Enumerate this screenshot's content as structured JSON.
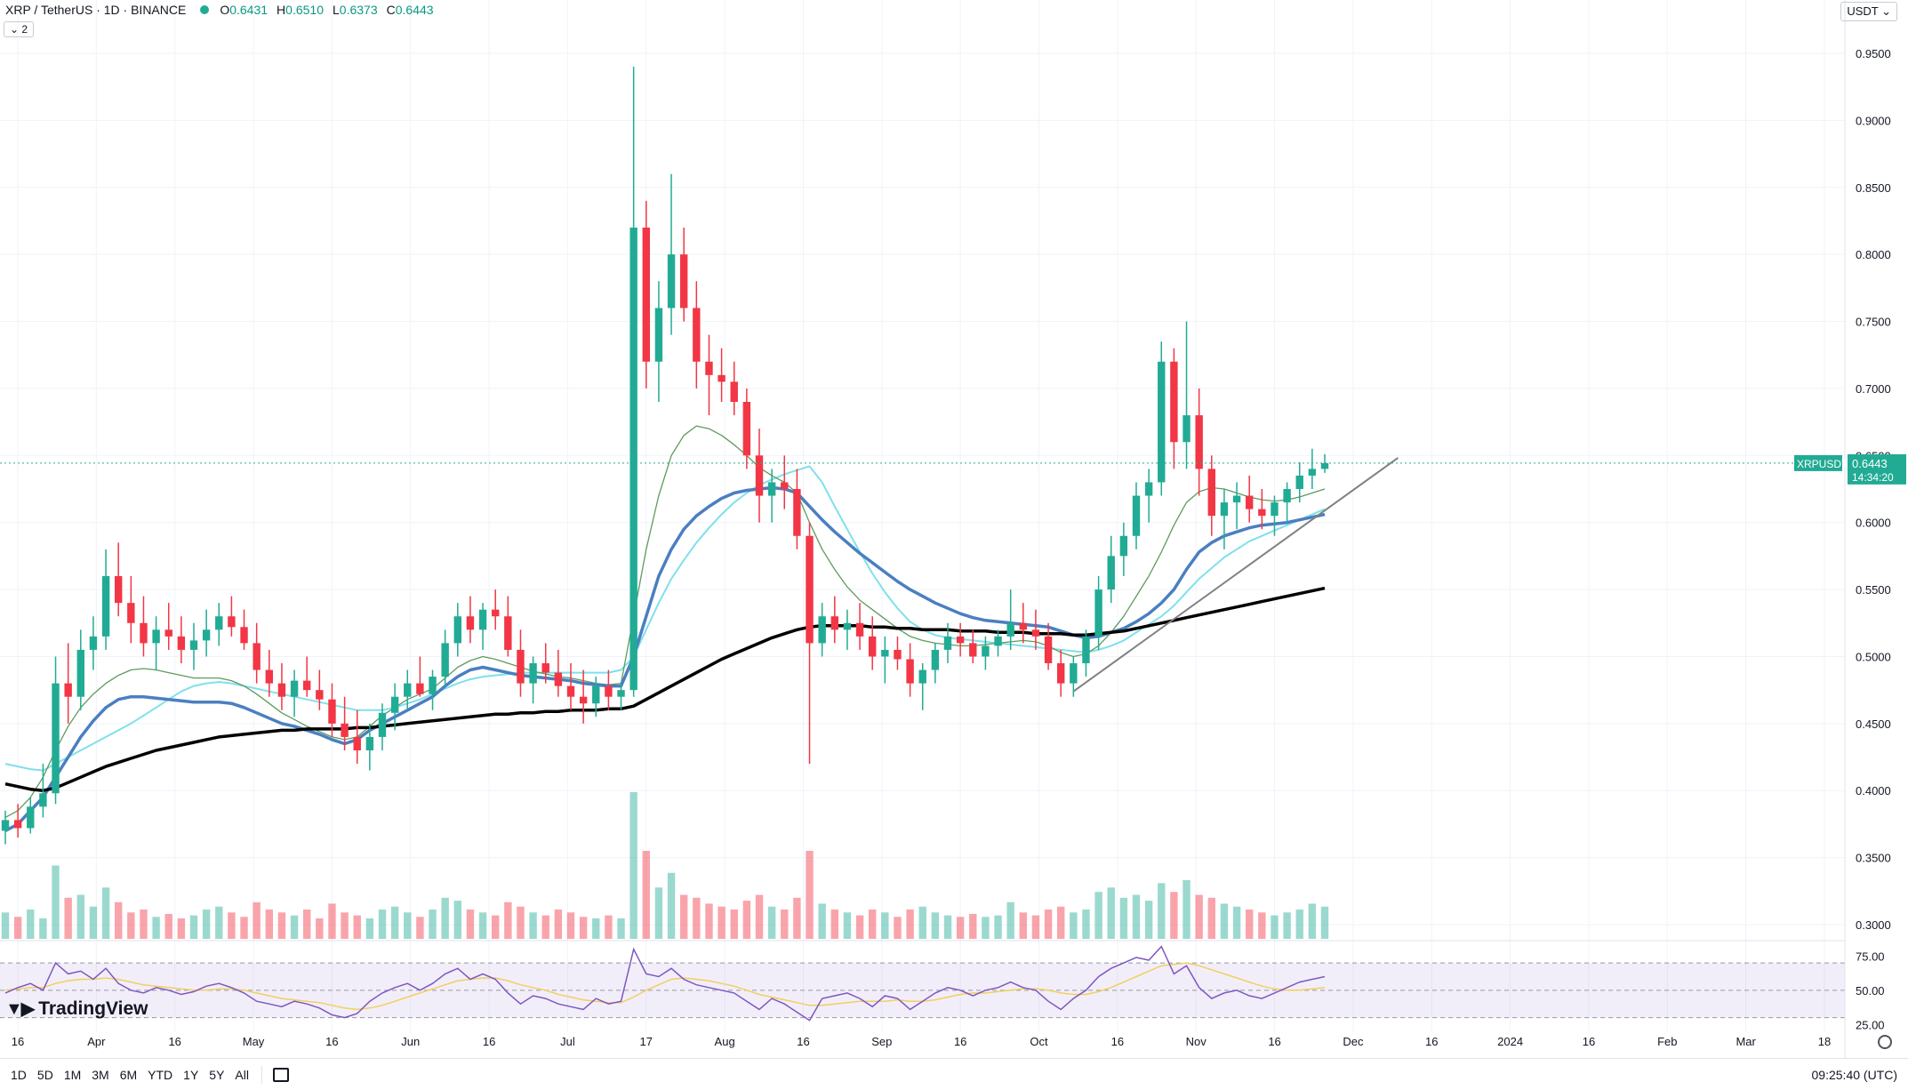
{
  "header": {
    "symbol_title": "XRP / TetherUS · 1D · BINANCE",
    "ohlc": [
      {
        "k": "O",
        "v": "0.6431"
      },
      {
        "k": "H",
        "v": "0.6510"
      },
      {
        "k": "L",
        "v": "0.6373"
      },
      {
        "k": "C",
        "v": "0.6443"
      }
    ],
    "indicator_count": "2",
    "currency": "USDT"
  },
  "price_label": {
    "symbol": "XRPUSDT",
    "price": "0.6443",
    "countdown": "14:34:20"
  },
  "timeframes": [
    "1D",
    "5D",
    "1M",
    "3M",
    "6M",
    "YTD",
    "1Y",
    "5Y",
    "All"
  ],
  "clock": "09:25:40 (UTC)",
  "logo_text": "TradingView",
  "colors": {
    "up": "#22ab94",
    "down": "#f23645",
    "sma_black": "#000000",
    "ema_blue": "#4a7fc1",
    "cyan": "#7fe0ec",
    "green_ma": "#5f9a5f",
    "rsi": "#7e57c2",
    "rsi_ma": "#f0d060",
    "trend": "#808080"
  },
  "chart_data": {
    "type": "candlestick",
    "y_axis": {
      "ticks": [
        "0.9500",
        "0.9000",
        "0.8500",
        "0.8000",
        "0.7500",
        "0.7000",
        "0.6500",
        "0.6000",
        "0.5500",
        "0.5000",
        "0.4500",
        "0.4000",
        "0.3500",
        "0.3000"
      ],
      "range": [
        0.29,
        0.96
      ]
    },
    "x_axis": {
      "ticks": [
        "16",
        "Apr",
        "16",
        "May",
        "16",
        "Jun",
        "16",
        "Jul",
        "17",
        "Aug",
        "16",
        "Sep",
        "16",
        "Oct",
        "16",
        "Nov",
        "16",
        "Dec",
        "16",
        "2024",
        "16",
        "Feb",
        "Mar",
        "18"
      ]
    },
    "last_price": 0.6443,
    "rsi_axis": {
      "ticks": [
        "75.00",
        "50.00",
        "25.00"
      ],
      "range": [
        20,
        85
      ],
      "band": [
        30,
        70
      ]
    },
    "ohlc": [
      [
        0.37,
        0.385,
        0.36,
        0.378
      ],
      [
        0.378,
        0.39,
        0.365,
        0.372
      ],
      [
        0.372,
        0.395,
        0.368,
        0.388
      ],
      [
        0.388,
        0.42,
        0.38,
        0.398
      ],
      [
        0.398,
        0.5,
        0.39,
        0.48
      ],
      [
        0.48,
        0.51,
        0.45,
        0.47
      ],
      [
        0.47,
        0.52,
        0.46,
        0.505
      ],
      [
        0.505,
        0.53,
        0.49,
        0.515
      ],
      [
        0.515,
        0.58,
        0.505,
        0.56
      ],
      [
        0.56,
        0.585,
        0.53,
        0.54
      ],
      [
        0.54,
        0.56,
        0.51,
        0.525
      ],
      [
        0.525,
        0.545,
        0.5,
        0.51
      ],
      [
        0.51,
        0.53,
        0.49,
        0.52
      ],
      [
        0.52,
        0.54,
        0.505,
        0.515
      ],
      [
        0.515,
        0.53,
        0.495,
        0.505
      ],
      [
        0.505,
        0.525,
        0.49,
        0.512
      ],
      [
        0.512,
        0.535,
        0.5,
        0.52
      ],
      [
        0.52,
        0.54,
        0.508,
        0.53
      ],
      [
        0.53,
        0.545,
        0.515,
        0.522
      ],
      [
        0.522,
        0.535,
        0.505,
        0.51
      ],
      [
        0.51,
        0.525,
        0.48,
        0.49
      ],
      [
        0.49,
        0.505,
        0.47,
        0.48
      ],
      [
        0.48,
        0.495,
        0.46,
        0.47
      ],
      [
        0.47,
        0.49,
        0.455,
        0.482
      ],
      [
        0.482,
        0.5,
        0.47,
        0.475
      ],
      [
        0.475,
        0.49,
        0.46,
        0.468
      ],
      [
        0.468,
        0.48,
        0.44,
        0.45
      ],
      [
        0.45,
        0.47,
        0.43,
        0.44
      ],
      [
        0.44,
        0.46,
        0.42,
        0.43
      ],
      [
        0.43,
        0.45,
        0.415,
        0.44
      ],
      [
        0.44,
        0.465,
        0.43,
        0.458
      ],
      [
        0.458,
        0.48,
        0.445,
        0.47
      ],
      [
        0.47,
        0.49,
        0.46,
        0.48
      ],
      [
        0.48,
        0.5,
        0.47,
        0.472
      ],
      [
        0.472,
        0.49,
        0.46,
        0.485
      ],
      [
        0.485,
        0.52,
        0.478,
        0.51
      ],
      [
        0.51,
        0.54,
        0.5,
        0.53
      ],
      [
        0.53,
        0.545,
        0.51,
        0.52
      ],
      [
        0.52,
        0.54,
        0.505,
        0.535
      ],
      [
        0.535,
        0.55,
        0.52,
        0.53
      ],
      [
        0.53,
        0.545,
        0.5,
        0.505
      ],
      [
        0.505,
        0.52,
        0.47,
        0.48
      ],
      [
        0.48,
        0.5,
        0.465,
        0.495
      ],
      [
        0.495,
        0.51,
        0.48,
        0.488
      ],
      [
        0.488,
        0.505,
        0.47,
        0.478
      ],
      [
        0.478,
        0.495,
        0.46,
        0.47
      ],
      [
        0.47,
        0.49,
        0.45,
        0.465
      ],
      [
        0.465,
        0.485,
        0.455,
        0.478
      ],
      [
        0.478,
        0.49,
        0.46,
        0.47
      ],
      [
        0.47,
        0.48,
        0.46,
        0.475
      ],
      [
        0.475,
        0.94,
        0.47,
        0.82
      ],
      [
        0.82,
        0.84,
        0.7,
        0.72
      ],
      [
        0.72,
        0.78,
        0.69,
        0.76
      ],
      [
        0.76,
        0.86,
        0.74,
        0.8
      ],
      [
        0.8,
        0.82,
        0.75,
        0.76
      ],
      [
        0.76,
        0.78,
        0.7,
        0.72
      ],
      [
        0.72,
        0.74,
        0.68,
        0.71
      ],
      [
        0.71,
        0.73,
        0.69,
        0.705
      ],
      [
        0.705,
        0.72,
        0.68,
        0.69
      ],
      [
        0.69,
        0.7,
        0.64,
        0.65
      ],
      [
        0.65,
        0.67,
        0.6,
        0.62
      ],
      [
        0.62,
        0.64,
        0.6,
        0.63
      ],
      [
        0.63,
        0.65,
        0.61,
        0.625
      ],
      [
        0.625,
        0.64,
        0.58,
        0.59
      ],
      [
        0.59,
        0.6,
        0.42,
        0.51
      ],
      [
        0.51,
        0.54,
        0.5,
        0.53
      ],
      [
        0.53,
        0.545,
        0.51,
        0.52
      ],
      [
        0.52,
        0.535,
        0.505,
        0.525
      ],
      [
        0.525,
        0.54,
        0.505,
        0.515
      ],
      [
        0.515,
        0.53,
        0.49,
        0.5
      ],
      [
        0.5,
        0.515,
        0.48,
        0.505
      ],
      [
        0.505,
        0.515,
        0.49,
        0.498
      ],
      [
        0.498,
        0.51,
        0.47,
        0.48
      ],
      [
        0.48,
        0.495,
        0.46,
        0.49
      ],
      [
        0.49,
        0.51,
        0.48,
        0.505
      ],
      [
        0.505,
        0.525,
        0.495,
        0.515
      ],
      [
        0.515,
        0.525,
        0.5,
        0.51
      ],
      [
        0.51,
        0.52,
        0.495,
        0.5
      ],
      [
        0.5,
        0.515,
        0.49,
        0.508
      ],
      [
        0.508,
        0.52,
        0.5,
        0.515
      ],
      [
        0.515,
        0.55,
        0.505,
        0.525
      ],
      [
        0.525,
        0.54,
        0.51,
        0.52
      ],
      [
        0.52,
        0.535,
        0.505,
        0.515
      ],
      [
        0.515,
        0.525,
        0.49,
        0.495
      ],
      [
        0.495,
        0.505,
        0.47,
        0.48
      ],
      [
        0.48,
        0.5,
        0.47,
        0.495
      ],
      [
        0.495,
        0.52,
        0.485,
        0.515
      ],
      [
        0.515,
        0.56,
        0.505,
        0.55
      ],
      [
        0.55,
        0.59,
        0.54,
        0.575
      ],
      [
        0.575,
        0.6,
        0.56,
        0.59
      ],
      [
        0.59,
        0.63,
        0.58,
        0.62
      ],
      [
        0.62,
        0.64,
        0.6,
        0.63
      ],
      [
        0.63,
        0.735,
        0.62,
        0.72
      ],
      [
        0.72,
        0.73,
        0.64,
        0.66
      ],
      [
        0.66,
        0.75,
        0.64,
        0.68
      ],
      [
        0.68,
        0.7,
        0.62,
        0.64
      ],
      [
        0.64,
        0.65,
        0.59,
        0.605
      ],
      [
        0.605,
        0.625,
        0.58,
        0.615
      ],
      [
        0.615,
        0.63,
        0.595,
        0.62
      ],
      [
        0.62,
        0.635,
        0.6,
        0.61
      ],
      [
        0.61,
        0.625,
        0.595,
        0.605
      ],
      [
        0.605,
        0.62,
        0.59,
        0.615
      ],
      [
        0.615,
        0.63,
        0.6,
        0.625
      ],
      [
        0.625,
        0.645,
        0.615,
        0.635
      ],
      [
        0.635,
        0.655,
        0.625,
        0.64
      ],
      [
        0.64,
        0.651,
        0.637,
        0.6443
      ]
    ],
    "volume": [
      18,
      15,
      20,
      14,
      50,
      28,
      30,
      22,
      35,
      25,
      18,
      20,
      15,
      17,
      14,
      16,
      20,
      22,
      18,
      15,
      25,
      20,
      18,
      16,
      20,
      14,
      24,
      18,
      16,
      14,
      20,
      22,
      18,
      15,
      20,
      28,
      26,
      20,
      18,
      16,
      25,
      22,
      18,
      16,
      20,
      18,
      15,
      14,
      16,
      14,
      100,
      60,
      35,
      45,
      30,
      28,
      24,
      22,
      20,
      26,
      30,
      22,
      20,
      28,
      60,
      24,
      20,
      18,
      16,
      20,
      18,
      15,
      20,
      22,
      18,
      16,
      15,
      17,
      15,
      16,
      25,
      18,
      16,
      20,
      22,
      18,
      20,
      32,
      35,
      28,
      30,
      26,
      38,
      32,
      40,
      30,
      28,
      24,
      22,
      20,
      18,
      16,
      18,
      20,
      24,
      22
    ],
    "sma_black": [
      0.405,
      0.403,
      0.401,
      0.4,
      0.402,
      0.406,
      0.41,
      0.414,
      0.418,
      0.421,
      0.424,
      0.427,
      0.43,
      0.432,
      0.434,
      0.436,
      0.438,
      0.44,
      0.441,
      0.442,
      0.443,
      0.444,
      0.445,
      0.445,
      0.446,
      0.446,
      0.446,
      0.446,
      0.447,
      0.447,
      0.448,
      0.449,
      0.45,
      0.451,
      0.452,
      0.453,
      0.454,
      0.455,
      0.456,
      0.457,
      0.457,
      0.458,
      0.458,
      0.459,
      0.459,
      0.46,
      0.46,
      0.46,
      0.461,
      0.461,
      0.463,
      0.468,
      0.473,
      0.478,
      0.483,
      0.488,
      0.493,
      0.498,
      0.502,
      0.506,
      0.51,
      0.514,
      0.517,
      0.52,
      0.522,
      0.523,
      0.523,
      0.523,
      0.523,
      0.522,
      0.522,
      0.521,
      0.521,
      0.52,
      0.52,
      0.52,
      0.519,
      0.519,
      0.519,
      0.518,
      0.518,
      0.518,
      0.517,
      0.517,
      0.517,
      0.516,
      0.516,
      0.517,
      0.518,
      0.519,
      0.521,
      0.523,
      0.525,
      0.527,
      0.529,
      0.531,
      0.533,
      0.535,
      0.537,
      0.539,
      0.541,
      0.543,
      0.545,
      0.547,
      0.549,
      0.551
    ],
    "ema_blue": [
      0.37,
      0.375,
      0.385,
      0.395,
      0.41,
      0.425,
      0.44,
      0.452,
      0.462,
      0.468,
      0.47,
      0.47,
      0.469,
      0.468,
      0.467,
      0.466,
      0.466,
      0.466,
      0.465,
      0.462,
      0.458,
      0.454,
      0.45,
      0.448,
      0.445,
      0.442,
      0.438,
      0.435,
      0.438,
      0.445,
      0.45,
      0.455,
      0.46,
      0.465,
      0.47,
      0.478,
      0.485,
      0.49,
      0.492,
      0.49,
      0.488,
      0.486,
      0.485,
      0.484,
      0.483,
      0.482,
      0.48,
      0.479,
      0.478,
      0.478,
      0.5,
      0.53,
      0.56,
      0.58,
      0.595,
      0.605,
      0.612,
      0.618,
      0.622,
      0.624,
      0.625,
      0.626,
      0.625,
      0.622,
      0.612,
      0.602,
      0.593,
      0.585,
      0.577,
      0.57,
      0.563,
      0.556,
      0.55,
      0.545,
      0.54,
      0.536,
      0.532,
      0.529,
      0.527,
      0.526,
      0.525,
      0.524,
      0.523,
      0.522,
      0.519,
      0.516,
      0.514,
      0.515,
      0.518,
      0.521,
      0.526,
      0.532,
      0.54,
      0.55,
      0.565,
      0.578,
      0.585,
      0.59,
      0.593,
      0.596,
      0.598,
      0.599,
      0.6,
      0.602,
      0.604,
      0.606
    ],
    "cyan_ma": [
      0.42,
      0.418,
      0.416,
      0.415,
      0.42,
      0.425,
      0.43,
      0.435,
      0.44,
      0.445,
      0.45,
      0.456,
      0.462,
      0.468,
      0.474,
      0.478,
      0.48,
      0.481,
      0.48,
      0.478,
      0.476,
      0.474,
      0.472,
      0.47,
      0.468,
      0.466,
      0.464,
      0.462,
      0.46,
      0.46,
      0.46,
      0.462,
      0.465,
      0.468,
      0.472,
      0.476,
      0.48,
      0.483,
      0.485,
      0.486,
      0.487,
      0.488,
      0.488,
      0.488,
      0.488,
      0.488,
      0.488,
      0.488,
      0.488,
      0.49,
      0.5,
      0.52,
      0.54,
      0.558,
      0.572,
      0.585,
      0.596,
      0.606,
      0.615,
      0.622,
      0.628,
      0.632,
      0.636,
      0.639,
      0.642,
      0.63,
      0.612,
      0.595,
      0.578,
      0.562,
      0.548,
      0.536,
      0.526,
      0.52,
      0.516,
      0.514,
      0.513,
      0.512,
      0.511,
      0.51,
      0.509,
      0.508,
      0.507,
      0.506,
      0.505,
      0.504,
      0.503,
      0.505,
      0.508,
      0.512,
      0.518,
      0.524,
      0.53,
      0.538,
      0.548,
      0.558,
      0.566,
      0.574,
      0.58,
      0.586,
      0.59,
      0.594,
      0.598,
      0.602,
      0.606,
      0.61
    ],
    "green_ma": [
      0.38,
      0.385,
      0.395,
      0.41,
      0.43,
      0.448,
      0.462,
      0.472,
      0.48,
      0.486,
      0.49,
      0.491,
      0.49,
      0.488,
      0.486,
      0.484,
      0.484,
      0.484,
      0.482,
      0.478,
      0.472,
      0.465,
      0.458,
      0.453,
      0.448,
      0.444,
      0.44,
      0.438,
      0.44,
      0.448,
      0.456,
      0.462,
      0.468,
      0.472,
      0.476,
      0.484,
      0.492,
      0.497,
      0.5,
      0.498,
      0.495,
      0.492,
      0.489,
      0.487,
      0.485,
      0.484,
      0.482,
      0.48,
      0.479,
      0.48,
      0.53,
      0.58,
      0.62,
      0.65,
      0.665,
      0.672,
      0.67,
      0.665,
      0.658,
      0.65,
      0.641,
      0.635,
      0.63,
      0.622,
      0.6,
      0.58,
      0.565,
      0.552,
      0.542,
      0.535,
      0.528,
      0.521,
      0.515,
      0.512,
      0.51,
      0.509,
      0.508,
      0.508,
      0.509,
      0.51,
      0.511,
      0.512,
      0.511,
      0.508,
      0.503,
      0.5,
      0.502,
      0.508,
      0.518,
      0.53,
      0.545,
      0.56,
      0.578,
      0.598,
      0.615,
      0.623,
      0.626,
      0.625,
      0.622,
      0.619,
      0.617,
      0.616,
      0.617,
      0.619,
      0.622,
      0.625
    ],
    "trendline": {
      "from": [
        85,
        0.474
      ],
      "to": [
        108,
        0.635
      ]
    },
    "rsi": [
      48,
      52,
      55,
      50,
      70,
      62,
      64,
      58,
      66,
      55,
      50,
      48,
      52,
      50,
      47,
      49,
      53,
      55,
      52,
      48,
      42,
      40,
      38,
      42,
      40,
      37,
      32,
      30,
      33,
      42,
      48,
      52,
      55,
      50,
      55,
      62,
      66,
      58,
      62,
      58,
      48,
      40,
      46,
      44,
      40,
      38,
      36,
      44,
      40,
      42,
      80,
      62,
      60,
      66,
      58,
      54,
      52,
      50,
      48,
      42,
      36,
      44,
      40,
      34,
      28,
      44,
      46,
      48,
      44,
      38,
      46,
      44,
      36,
      42,
      48,
      52,
      50,
      46,
      50,
      52,
      56,
      52,
      50,
      42,
      36,
      44,
      50,
      60,
      66,
      70,
      74,
      72,
      82,
      62,
      68,
      52,
      44,
      48,
      50,
      46,
      44,
      48,
      52,
      56,
      58,
      60
    ],
    "rsi_ma": [
      50,
      51,
      52,
      52,
      55,
      57,
      58,
      58,
      59,
      58,
      56,
      54,
      53,
      52,
      51,
      50,
      50,
      51,
      51,
      50,
      48,
      46,
      44,
      43,
      42,
      41,
      39,
      37,
      36,
      37,
      39,
      42,
      45,
      48,
      51,
      54,
      57,
      58,
      59,
      59,
      57,
      54,
      52,
      50,
      47,
      45,
      43,
      42,
      41,
      41,
      45,
      50,
      54,
      58,
      59,
      58,
      57,
      55,
      53,
      50,
      47,
      45,
      43,
      41,
      39,
      39,
      40,
      41,
      42,
      42,
      42,
      43,
      42,
      42,
      43,
      45,
      47,
      48,
      48,
      49,
      50,
      51,
      51,
      50,
      48,
      47,
      47,
      49,
      52,
      56,
      60,
      64,
      68,
      69,
      70,
      68,
      65,
      62,
      59,
      56,
      53,
      51,
      50,
      50,
      51,
      52
    ]
  }
}
